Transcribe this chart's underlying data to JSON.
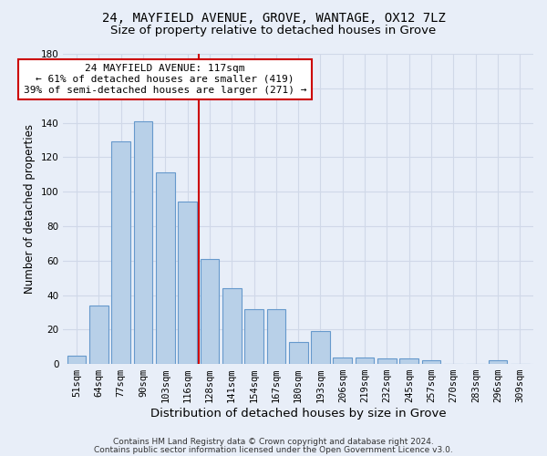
{
  "title1": "24, MAYFIELD AVENUE, GROVE, WANTAGE, OX12 7LZ",
  "title2": "Size of property relative to detached houses in Grove",
  "xlabel": "Distribution of detached houses by size in Grove",
  "ylabel": "Number of detached properties",
  "categories": [
    "51sqm",
    "64sqm",
    "77sqm",
    "90sqm",
    "103sqm",
    "116sqm",
    "128sqm",
    "141sqm",
    "154sqm",
    "167sqm",
    "180sqm",
    "193sqm",
    "206sqm",
    "219sqm",
    "232sqm",
    "245sqm",
    "257sqm",
    "270sqm",
    "283sqm",
    "296sqm",
    "309sqm"
  ],
  "values": [
    5,
    34,
    129,
    141,
    111,
    94,
    61,
    44,
    32,
    32,
    13,
    19,
    4,
    4,
    3,
    3,
    2,
    0,
    0,
    2,
    0
  ],
  "bar_color": "#b8d0e8",
  "bar_edge_color": "#6699cc",
  "vline_x": 5.5,
  "vline_color": "#cc0000",
  "annotation_line1": "24 MAYFIELD AVENUE: 117sqm",
  "annotation_line2": "← 61% of detached houses are smaller (419)",
  "annotation_line3": "39% of semi-detached houses are larger (271) →",
  "annotation_box_color": "#ffffff",
  "annotation_box_edge": "#cc0000",
  "ylim": [
    0,
    180
  ],
  "yticks": [
    0,
    20,
    40,
    60,
    80,
    100,
    120,
    140,
    160,
    180
  ],
  "footer1": "Contains HM Land Registry data © Crown copyright and database right 2024.",
  "footer2": "Contains public sector information licensed under the Open Government Licence v3.0.",
  "bg_color": "#e8eef8",
  "grid_color": "#d0d8e8",
  "title1_fontsize": 10,
  "title2_fontsize": 9.5,
  "xlabel_fontsize": 9.5,
  "ylabel_fontsize": 8.5,
  "tick_fontsize": 7.5,
  "annotation_fontsize": 8,
  "footer_fontsize": 6.5
}
